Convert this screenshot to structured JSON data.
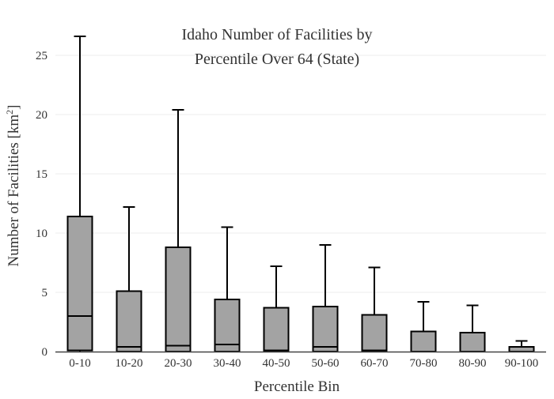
{
  "chart_data": {
    "type": "box",
    "title_lines": [
      "Idaho Number of Facilities by",
      "Percentile Over 64 (State)"
    ],
    "xlabel": "Percentile Bin",
    "ylabel_main": "Number of Facilities  [km",
    "ylabel_sup": "2",
    "ylabel_close": "]",
    "ylim": [
      0,
      27
    ],
    "yticks": [
      0,
      5,
      10,
      15,
      20,
      25
    ],
    "grid": true,
    "box_color": "#a3a3a3",
    "line_color": "#000000",
    "grid_color": "#eeeeee",
    "categories": [
      "0-10",
      "10-20",
      "20-30",
      "30-40",
      "40-50",
      "50-60",
      "60-70",
      "70-80",
      "80-90",
      "90-100"
    ],
    "boxes": [
      {
        "min": 0,
        "q1": 0.1,
        "median": 3.0,
        "q3": 11.4,
        "max": 26.6
      },
      {
        "min": 0,
        "q1": 0.0,
        "median": 0.4,
        "q3": 5.1,
        "max": 12.2
      },
      {
        "min": 0,
        "q1": 0.0,
        "median": 0.5,
        "q3": 8.8,
        "max": 20.4
      },
      {
        "min": 0,
        "q1": 0.0,
        "median": 0.6,
        "q3": 4.4,
        "max": 10.5
      },
      {
        "min": 0,
        "q1": 0.0,
        "median": 0.1,
        "q3": 3.7,
        "max": 7.2
      },
      {
        "min": 0,
        "q1": 0.0,
        "median": 0.4,
        "q3": 3.8,
        "max": 9.0
      },
      {
        "min": 0,
        "q1": 0.0,
        "median": 0.1,
        "q3": 3.1,
        "max": 7.1
      },
      {
        "min": 0,
        "q1": 0.0,
        "median": 0.0,
        "q3": 1.7,
        "max": 4.2
      },
      {
        "min": 0,
        "q1": 0.0,
        "median": 0.0,
        "q3": 1.6,
        "max": 3.9
      },
      {
        "min": 0,
        "q1": 0.0,
        "median": 0.0,
        "q3": 0.4,
        "max": 0.9
      }
    ]
  }
}
